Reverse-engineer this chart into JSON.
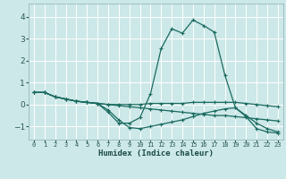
{
  "xlabel": "Humidex (Indice chaleur)",
  "bg_color": "#cde8e8",
  "grid_color": "#ffffff",
  "line_color": "#1a6b60",
  "xlim": [
    -0.5,
    23.5
  ],
  "ylim": [
    -1.6,
    4.6
  ],
  "xtick_labels": [
    "0",
    "1",
    "2",
    "3",
    "4",
    "5",
    "6",
    "7",
    "8",
    "9",
    "10",
    "11",
    "12",
    "13",
    "14",
    "15",
    "16",
    "17",
    "18",
    "19",
    "20",
    "21",
    "22",
    "23"
  ],
  "yticks": [
    -1,
    0,
    1,
    2,
    3,
    4
  ],
  "series": [
    [
      0.55,
      0.55,
      0.35,
      0.25,
      0.15,
      0.1,
      0.05,
      -0.35,
      -0.85,
      -0.85,
      -0.6,
      0.5,
      2.55,
      3.45,
      3.25,
      3.85,
      3.6,
      3.3,
      1.35,
      -0.15,
      -0.55,
      -1.1,
      -1.25,
      -1.3
    ],
    [
      0.55,
      0.55,
      0.35,
      0.25,
      0.15,
      0.1,
      0.05,
      -0.25,
      -0.7,
      -1.05,
      -1.1,
      -1.0,
      -0.9,
      -0.8,
      -0.7,
      -0.55,
      -0.4,
      -0.3,
      -0.2,
      -0.15,
      -0.5,
      -0.85,
      -1.1,
      -1.25
    ],
    [
      0.55,
      0.55,
      0.35,
      0.25,
      0.15,
      0.1,
      0.05,
      0.0,
      -0.05,
      -0.1,
      -0.15,
      -0.2,
      -0.25,
      -0.3,
      -0.35,
      -0.4,
      -0.45,
      -0.5,
      -0.5,
      -0.55,
      -0.6,
      -0.65,
      -0.7,
      -0.75
    ],
    [
      0.55,
      0.55,
      0.35,
      0.25,
      0.15,
      0.1,
      0.05,
      0.0,
      0.0,
      0.0,
      0.0,
      0.05,
      0.05,
      0.05,
      0.05,
      0.1,
      0.1,
      0.1,
      0.1,
      0.1,
      0.05,
      0.0,
      -0.05,
      -0.1
    ]
  ]
}
